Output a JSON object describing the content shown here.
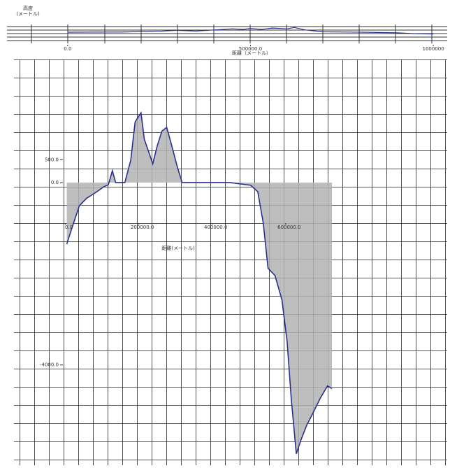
{
  "chart_data": [
    {
      "type": "line",
      "ylabel_lines": [
        "高度",
        "(メートル)"
      ],
      "xlabel": "距離（メートル）",
      "x": [
        0,
        150000,
        250000,
        300000,
        350000,
        400000,
        450000,
        480000,
        500000,
        530000,
        560000,
        600000,
        620000,
        650000,
        700000,
        800000,
        900000,
        950000,
        1000000
      ],
      "values": [
        0,
        10,
        50,
        100,
        60,
        120,
        180,
        150,
        200,
        150,
        220,
        180,
        250,
        120,
        20,
        0,
        -30,
        -80,
        -100
      ],
      "color": "#2b2f8f",
      "xlim": [
        -166000,
        1038000
      ],
      "ylim": [
        -600,
        600
      ],
      "xticks": [
        {
          "value": 0,
          "label": "0.0"
        },
        {
          "value": 500000,
          "label": "500000.0"
        },
        1000000
      ]
    },
    {
      "type": "area",
      "xlabel": "距離(メートル)",
      "x": [
        3800,
        19000,
        38000,
        57000,
        86000,
        105000,
        117000,
        128000,
        137000,
        162000,
        178000,
        190000,
        206000,
        215000,
        225000,
        238000,
        250000,
        263000,
        276000,
        290000,
        305000,
        318000,
        448000,
        505000,
        524000,
        539000,
        552000,
        571000,
        590000,
        604000,
        615000,
        629000,
        642000,
        657000,
        676000,
        695000,
        714000,
        726000
      ],
      "values": [
        -1350,
        -970,
        -510,
        -350,
        -200,
        -90,
        -50,
        260,
        0,
        0,
        490,
        1330,
        1530,
        950,
        720,
        410,
        800,
        1130,
        1210,
        800,
        340,
        0,
        0,
        -60,
        -200,
        -890,
        -1880,
        -2040,
        -2580,
        -3490,
        -4720,
        -5950,
        -5640,
        -5330,
        -5030,
        -4720,
        -4460,
        -4520
      ],
      "color": "#2b2f8f",
      "fill": "#b3b3b3",
      "xlim": [
        -140000,
        1040000
      ],
      "ylim": [
        -6200,
        2700
      ],
      "xticks": [
        {
          "value": 0,
          "label": "0.0"
        },
        {
          "value": 200000,
          "label": "200000.0"
        },
        {
          "value": 400000,
          "label": "400000.0"
        },
        {
          "value": 600000,
          "label": "600000.0"
        }
      ],
      "yticks": [
        {
          "value": 500,
          "label": "500.0"
        },
        {
          "value": 0,
          "label": "0.0"
        },
        {
          "value": -4000,
          "label": "-4000.0"
        }
      ]
    }
  ]
}
